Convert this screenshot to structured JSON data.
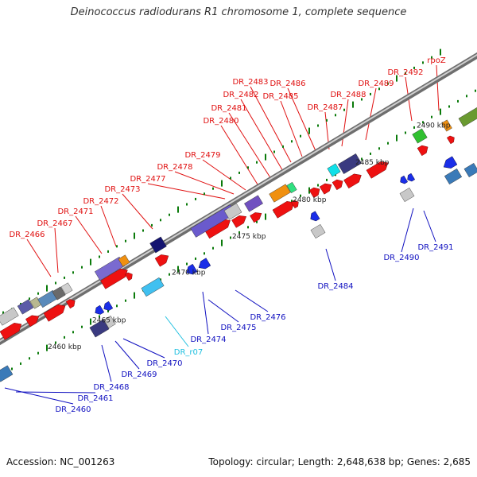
{
  "title": "Deinococcus radiodurans R1 chromosome 1, complete sequence",
  "footer": {
    "accession": "Accession: NC_001263",
    "topology": "Topology: circular; Length: 2,648,638 bp; Genes: 2,685"
  },
  "colors": {
    "backbone": "#9a9a9a",
    "ticks": "#0a7a0a",
    "top_labels": "#e01010",
    "bottom_labels": "#1010c0",
    "rna_label": "#20c0e0"
  },
  "scale_labels": [
    "2460 kbp",
    "2465 kbp",
    "2470 kbp",
    "2475 kbp",
    "2480 kbp",
    "2485 kbp",
    "2490 kbp"
  ],
  "top_gene_labels": [
    "DR_2466",
    "DR_2467",
    "DR_2471",
    "DR_2472",
    "DR_2473",
    "DR_2477",
    "DR_2478",
    "DR_2479",
    "DR_2480",
    "DR_2481",
    "DR_2482",
    "DR_2483",
    "DR_2485",
    "DR_2486",
    "DR_2487",
    "DR_2488",
    "DR_2489",
    "DR_2492",
    "rpoZ"
  ],
  "bottom_gene_labels": [
    "DR_2460",
    "DR_2461",
    "DR_2468",
    "DR_2469",
    "DR_2470",
    "DR_r07",
    "DR_2474",
    "DR_2475",
    "DR_2476",
    "DR_2484",
    "DR_2490",
    "DR_2491"
  ]
}
